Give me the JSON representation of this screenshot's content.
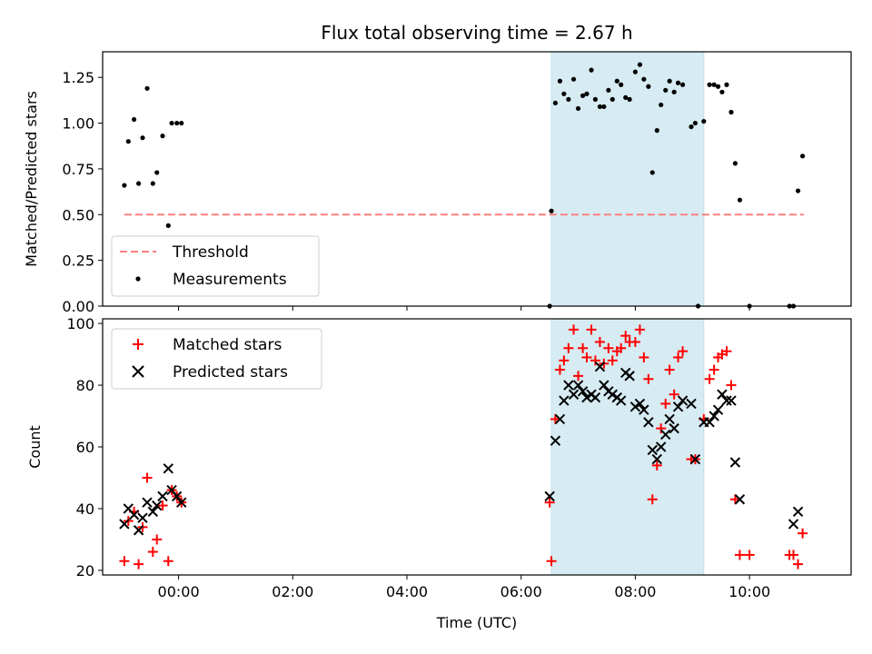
{
  "chart_data": [
    {
      "type": "scatter",
      "title": "Flux total observing time = 2.67 h",
      "xlabel": "",
      "ylabel": "Matched/Predicted stars",
      "xlim": [
        -1.33,
        11.78
      ],
      "ylim": [
        0.0,
        1.39
      ],
      "yticks": [
        0.0,
        0.25,
        0.5,
        0.75,
        1.0,
        1.25
      ],
      "ytick_labels": [
        "0.00",
        "0.25",
        "0.50",
        "0.75",
        "1.00",
        "1.25"
      ],
      "grid": false,
      "legend": "lower-left",
      "shaded_interval": [
        6.53,
        9.2
      ],
      "series": [
        {
          "name": "Threshold",
          "style": "dashed-line",
          "color": "#ff7f7f",
          "x": [
            -0.95,
            10.95
          ],
          "y": [
            0.5,
            0.5
          ]
        },
        {
          "name": "Measurements",
          "style": "dot",
          "color": "#000000",
          "points": [
            [
              -0.95,
              0.66
            ],
            [
              -0.88,
              0.9
            ],
            [
              -0.78,
              1.02
            ],
            [
              -0.7,
              0.67
            ],
            [
              -0.63,
              0.92
            ],
            [
              -0.55,
              1.19
            ],
            [
              -0.45,
              0.67
            ],
            [
              -0.38,
              0.73
            ],
            [
              -0.28,
              0.93
            ],
            [
              -0.18,
              0.44
            ],
            [
              -0.12,
              1.0
            ],
            [
              -0.03,
              1.0
            ],
            [
              0.05,
              1.0
            ],
            [
              6.5,
              0.0
            ],
            [
              6.53,
              0.52
            ],
            [
              6.6,
              1.11
            ],
            [
              6.68,
              1.23
            ],
            [
              6.75,
              1.16
            ],
            [
              6.83,
              1.13
            ],
            [
              6.92,
              1.24
            ],
            [
              7.0,
              1.08
            ],
            [
              7.08,
              1.15
            ],
            [
              7.15,
              1.16
            ],
            [
              7.23,
              1.29
            ],
            [
              7.3,
              1.13
            ],
            [
              7.38,
              1.09
            ],
            [
              7.45,
              1.09
            ],
            [
              7.53,
              1.18
            ],
            [
              7.6,
              1.13
            ],
            [
              7.68,
              1.23
            ],
            [
              7.75,
              1.21
            ],
            [
              7.83,
              1.14
            ],
            [
              7.9,
              1.13
            ],
            [
              8.0,
              1.28
            ],
            [
              8.08,
              1.32
            ],
            [
              8.15,
              1.24
            ],
            [
              8.23,
              1.2
            ],
            [
              8.3,
              0.73
            ],
            [
              8.38,
              0.96
            ],
            [
              8.45,
              1.1
            ],
            [
              8.53,
              1.18
            ],
            [
              8.6,
              1.23
            ],
            [
              8.68,
              1.17
            ],
            [
              8.75,
              1.22
            ],
            [
              8.83,
              1.21
            ],
            [
              8.98,
              0.98
            ],
            [
              9.05,
              1.0
            ],
            [
              9.1,
              0.0
            ],
            [
              9.2,
              1.01
            ],
            [
              9.3,
              1.21
            ],
            [
              9.38,
              1.21
            ],
            [
              9.45,
              1.2
            ],
            [
              9.52,
              1.17
            ],
            [
              9.6,
              1.21
            ],
            [
              9.68,
              1.06
            ],
            [
              9.75,
              0.78
            ],
            [
              9.83,
              0.58
            ],
            [
              10.0,
              0.0
            ],
            [
              10.7,
              0.0
            ],
            [
              10.77,
              0.0
            ],
            [
              10.85,
              0.63
            ],
            [
              10.93,
              0.82
            ]
          ]
        }
      ]
    },
    {
      "type": "scatter",
      "title": "",
      "xlabel": "Time (UTC)",
      "ylabel": "Count",
      "xlim": [
        -1.33,
        11.78
      ],
      "ylim": [
        18.5,
        101.5
      ],
      "xticks": [
        0,
        2,
        4,
        6,
        8,
        10
      ],
      "xtick_labels": [
        "00:00",
        "02:00",
        "04:00",
        "06:00",
        "08:00",
        "10:00"
      ],
      "yticks": [
        20,
        40,
        60,
        80,
        100
      ],
      "ytick_labels": [
        "20",
        "40",
        "60",
        "80",
        "100"
      ],
      "grid": false,
      "legend": "upper-left",
      "shaded_interval": [
        6.53,
        9.2
      ],
      "series": [
        {
          "name": "Matched stars",
          "style": "plus",
          "color": "#ff0000",
          "points": [
            [
              -0.95,
              23
            ],
            [
              -0.88,
              36
            ],
            [
              -0.78,
              39
            ],
            [
              -0.7,
              22
            ],
            [
              -0.63,
              34
            ],
            [
              -0.55,
              50
            ],
            [
              -0.45,
              26
            ],
            [
              -0.38,
              30
            ],
            [
              -0.28,
              41
            ],
            [
              -0.18,
              23
            ],
            [
              -0.12,
              46
            ],
            [
              -0.03,
              44
            ],
            [
              0.05,
              42
            ],
            [
              6.5,
              42
            ],
            [
              6.53,
              23
            ],
            [
              6.6,
              69
            ],
            [
              6.68,
              85
            ],
            [
              6.75,
              88
            ],
            [
              6.83,
              92
            ],
            [
              6.92,
              98
            ],
            [
              7.0,
              83
            ],
            [
              7.08,
              92
            ],
            [
              7.15,
              89
            ],
            [
              7.23,
              98
            ],
            [
              7.3,
              88
            ],
            [
              7.38,
              94
            ],
            [
              7.45,
              87
            ],
            [
              7.53,
              92
            ],
            [
              7.6,
              88
            ],
            [
              7.68,
              91
            ],
            [
              7.75,
              92
            ],
            [
              7.83,
              96
            ],
            [
              7.9,
              94
            ],
            [
              8.0,
              94
            ],
            [
              8.08,
              98
            ],
            [
              8.15,
              89
            ],
            [
              8.23,
              82
            ],
            [
              8.3,
              43
            ],
            [
              8.38,
              54
            ],
            [
              8.45,
              66
            ],
            [
              8.53,
              74
            ],
            [
              8.6,
              85
            ],
            [
              8.68,
              77
            ],
            [
              8.75,
              89
            ],
            [
              8.83,
              91
            ],
            [
              8.98,
              56
            ],
            [
              9.05,
              56
            ],
            [
              9.2,
              69
            ],
            [
              9.3,
              82
            ],
            [
              9.38,
              85
            ],
            [
              9.45,
              89
            ],
            [
              9.52,
              90
            ],
            [
              9.6,
              91
            ],
            [
              9.68,
              80
            ],
            [
              9.75,
              43
            ],
            [
              9.83,
              25
            ],
            [
              10.0,
              25
            ],
            [
              10.7,
              25
            ],
            [
              10.77,
              25
            ],
            [
              10.85,
              22
            ],
            [
              10.93,
              32
            ]
          ]
        },
        {
          "name": "Predicted stars",
          "style": "cross",
          "color": "#000000",
          "points": [
            [
              -0.95,
              35
            ],
            [
              -0.88,
              40
            ],
            [
              -0.78,
              38
            ],
            [
              -0.7,
              33
            ],
            [
              -0.63,
              37
            ],
            [
              -0.55,
              42
            ],
            [
              -0.45,
              39
            ],
            [
              -0.38,
              41
            ],
            [
              -0.28,
              44
            ],
            [
              -0.18,
              53
            ],
            [
              -0.12,
              46
            ],
            [
              -0.03,
              44
            ],
            [
              0.05,
              42
            ],
            [
              6.5,
              44
            ],
            [
              6.6,
              62
            ],
            [
              6.68,
              69
            ],
            [
              6.75,
              75
            ],
            [
              6.83,
              80
            ],
            [
              6.92,
              77
            ],
            [
              7.0,
              80
            ],
            [
              7.08,
              78
            ],
            [
              7.15,
              76
            ],
            [
              7.23,
              77
            ],
            [
              7.3,
              76
            ],
            [
              7.38,
              86
            ],
            [
              7.45,
              80
            ],
            [
              7.53,
              78
            ],
            [
              7.6,
              77
            ],
            [
              7.68,
              76
            ],
            [
              7.75,
              75
            ],
            [
              7.83,
              84
            ],
            [
              7.9,
              83
            ],
            [
              8.0,
              73
            ],
            [
              8.08,
              74
            ],
            [
              8.15,
              72
            ],
            [
              8.23,
              68
            ],
            [
              8.3,
              59
            ],
            [
              8.38,
              56
            ],
            [
              8.45,
              60
            ],
            [
              8.53,
              64
            ],
            [
              8.6,
              69
            ],
            [
              8.68,
              66
            ],
            [
              8.75,
              73
            ],
            [
              8.83,
              75
            ],
            [
              8.98,
              74
            ],
            [
              9.05,
              56
            ],
            [
              9.2,
              68
            ],
            [
              9.3,
              68
            ],
            [
              9.38,
              70
            ],
            [
              9.45,
              72
            ],
            [
              9.52,
              77
            ],
            [
              9.6,
              75
            ],
            [
              9.68,
              75
            ],
            [
              9.75,
              55
            ],
            [
              9.83,
              43
            ],
            [
              10.77,
              35
            ],
            [
              10.85,
              39
            ]
          ]
        }
      ]
    }
  ]
}
